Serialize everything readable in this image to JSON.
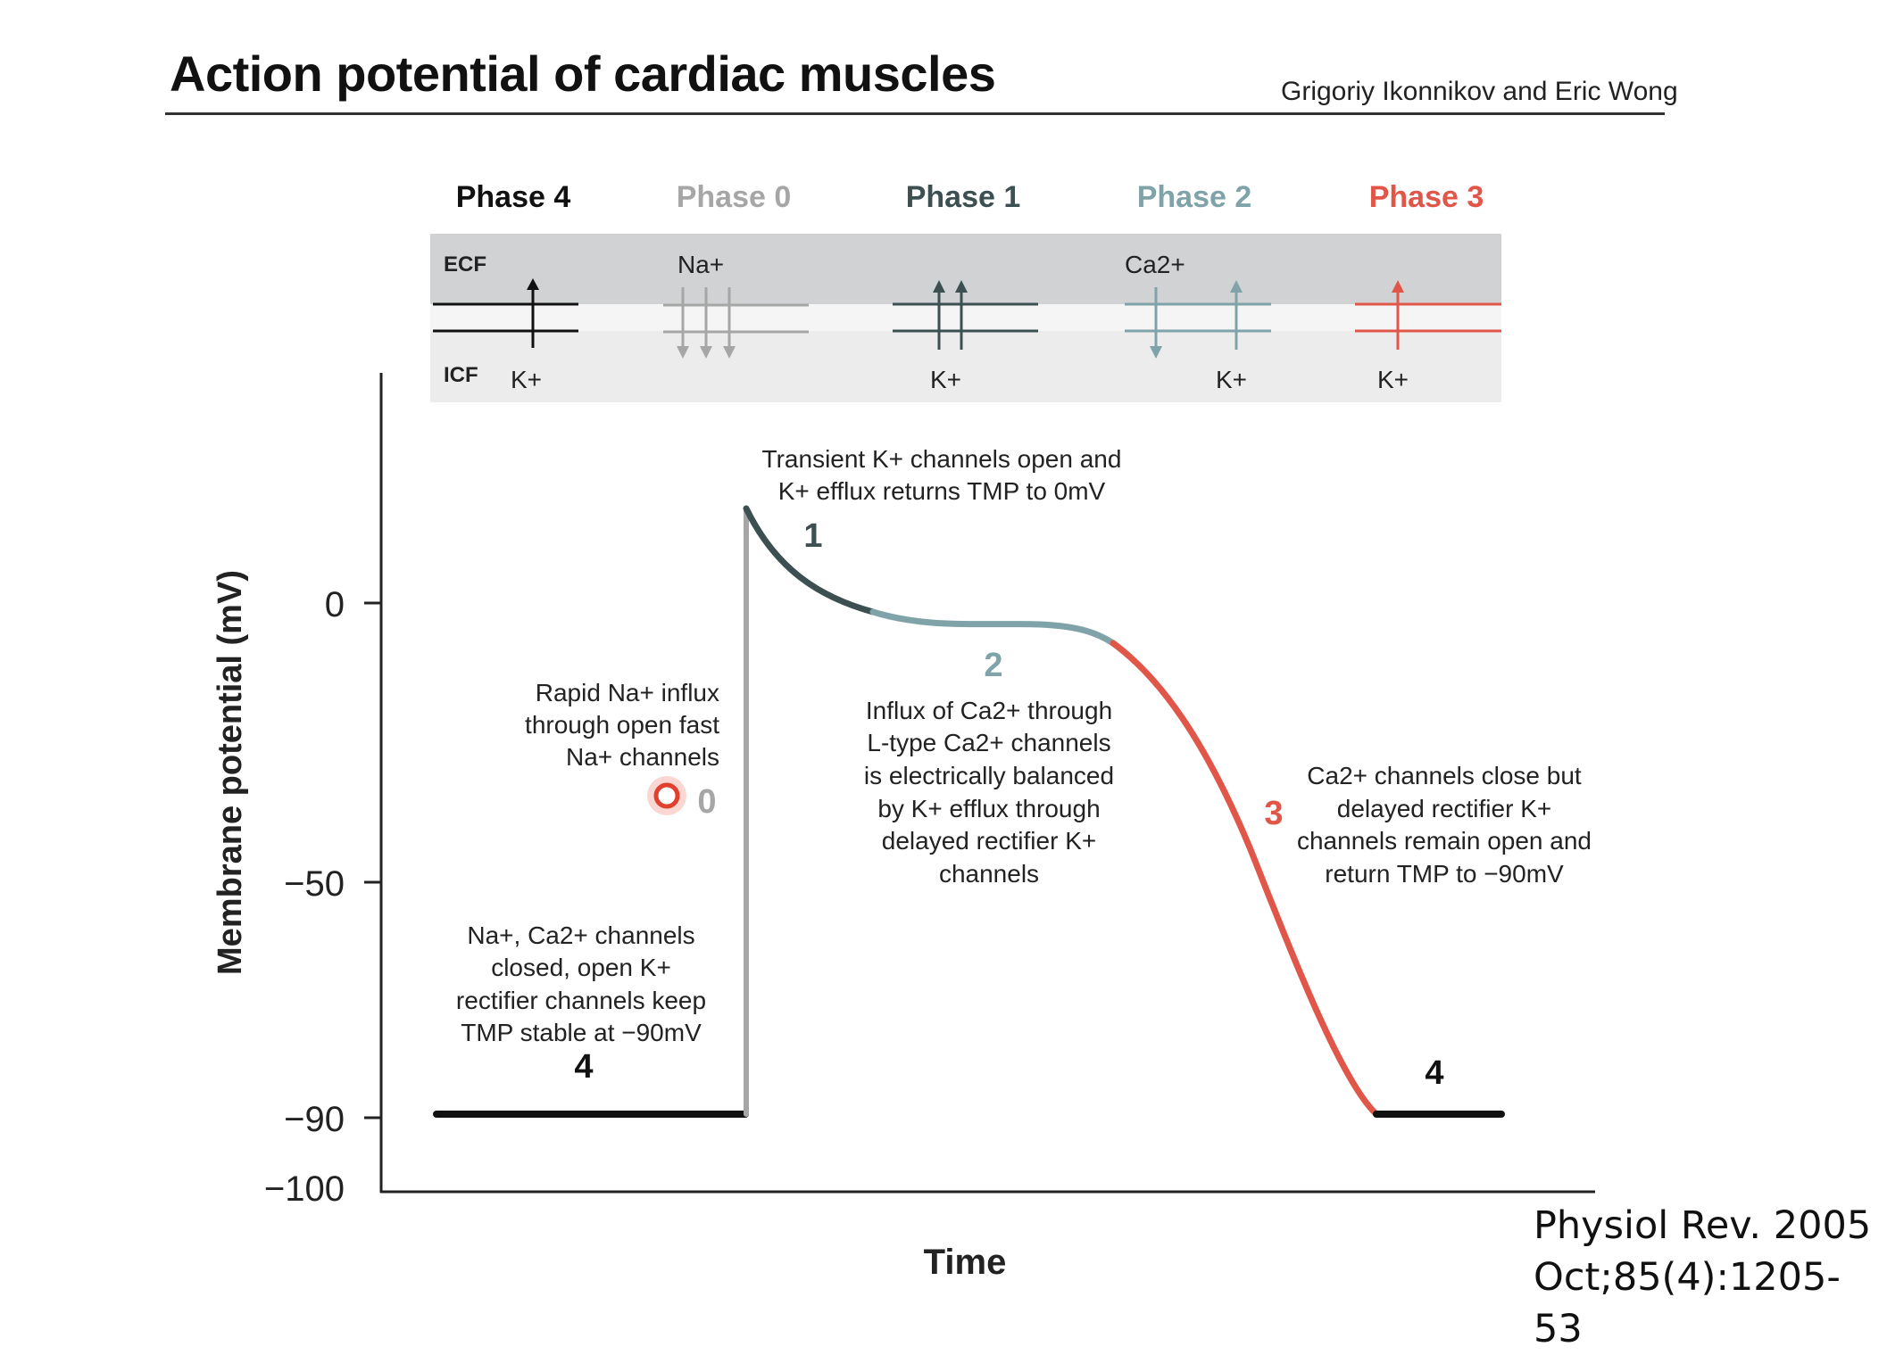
{
  "header": {
    "title": "Action potential of cardiac muscles",
    "authors": "Grigoriy Ikonnikov and Eric Wong"
  },
  "citation": {
    "line1": "Physiol Rev. 2005",
    "line2": "Oct;85(4):1205-53"
  },
  "colors": {
    "phase4": "#111111",
    "phase0": "#a6a6a6",
    "phase1": "#3c4f51",
    "phase2": "#7fa3a8",
    "phase3": "#e0574a",
    "ecf_band": "#d0d2d3",
    "icf_band": "#ececed"
  },
  "phases": [
    {
      "label": "Phase 4",
      "key": "phase4"
    },
    {
      "label": "Phase 0",
      "key": "phase0"
    },
    {
      "label": "Phase 1",
      "key": "phase1"
    },
    {
      "label": "Phase 2",
      "key": "phase2"
    },
    {
      "label": "Phase 3",
      "key": "phase3"
    }
  ],
  "membrane": {
    "ecf_label": "ECF",
    "icf_label": "ICF",
    "ion_labels": {
      "phase4_k": "K+",
      "phase0_na": "Na+",
      "phase1_k": "K+",
      "phase2_ca": "Ca2+",
      "phase2_k": "K+",
      "phase3_k": "K+"
    }
  },
  "axes": {
    "y_label": "Membrane potential (mV)",
    "x_label": "Time",
    "y_ticks": [
      "0",
      "−50",
      "−90",
      "−100"
    ]
  },
  "curve_labels": {
    "n4_left": "4",
    "n0": "0",
    "n1": "1",
    "n2": "2",
    "n3": "3",
    "n4_right": "4"
  },
  "annotations": {
    "phase1": [
      "Transient K+ channels open and",
      "K+ efflux returns TMP to 0mV"
    ],
    "phase0": [
      "Rapid Na+ influx",
      "through open fast",
      "Na+ channels"
    ],
    "phase2": [
      "Influx of Ca2+ through",
      "L-type Ca2+ channels",
      "is electrically balanced",
      "by K+ efflux through",
      "delayed rectifier K+",
      "channels"
    ],
    "phase3": [
      "Ca2+ channels close but",
      "delayed rectifier K+",
      "channels remain open and",
      "return TMP to −90mV"
    ],
    "phase4": [
      "Na+, Ca2+ channels",
      "closed, open K+",
      "rectifier channels keep",
      "TMP stable at −90mV"
    ]
  }
}
